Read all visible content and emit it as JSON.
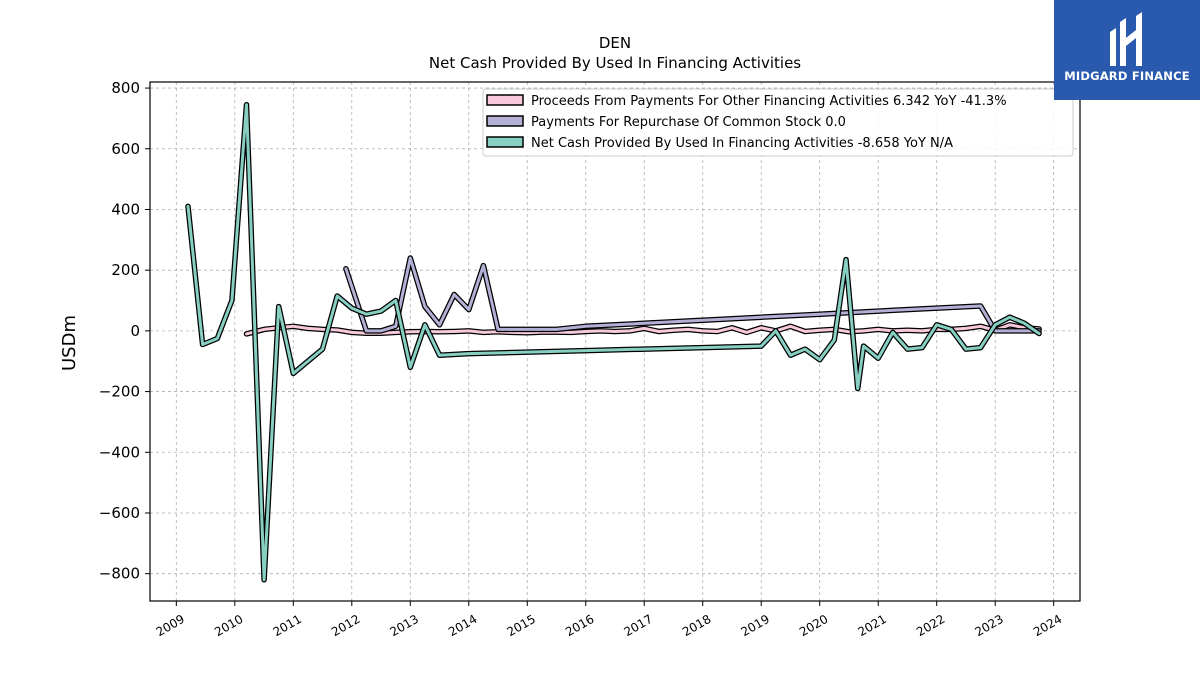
{
  "brand": {
    "name": "MIDGARD FINANCE",
    "icon": "midgard-logo-icon",
    "color": "#2a5aad"
  },
  "chart_data": {
    "type": "line",
    "title": "DEN",
    "subtitle": "Net Cash Provided By Used In Financing Activities",
    "ylabel": "USDm",
    "xlabel": "",
    "ylim": [
      -890,
      820
    ],
    "xlim": [
      2008.55,
      2024.45
    ],
    "x_ticks": [
      "2009",
      "2010",
      "2011",
      "2012",
      "2013",
      "2014",
      "2015",
      "2016",
      "2017",
      "2018",
      "2019",
      "2020",
      "2021",
      "2022",
      "2023",
      "2024"
    ],
    "y_ticks": [
      "800",
      "600",
      "400",
      "200",
      "0",
      "−200",
      "−400",
      "−600",
      "−800"
    ],
    "grid": true,
    "legend_position": "top-right",
    "series": [
      {
        "name": "Proceeds From Payments For Other Financing Activities",
        "legend": "Proceeds From Payments For Other Financing Activities  6.342 YoY -41.3%",
        "color": "#f8c8dc",
        "points": [
          [
            2010.2,
            -10
          ],
          [
            2010.5,
            5
          ],
          [
            2010.75,
            10
          ],
          [
            2011.0,
            15
          ],
          [
            2011.25,
            8
          ],
          [
            2011.5,
            5
          ],
          [
            2011.75,
            3
          ],
          [
            2012.0,
            -5
          ],
          [
            2012.25,
            -8
          ],
          [
            2012.5,
            -8
          ],
          [
            2012.75,
            -5
          ],
          [
            2013.0,
            -3
          ],
          [
            2013.25,
            -2
          ],
          [
            2013.5,
            -3
          ],
          [
            2013.75,
            -2
          ],
          [
            2014.0,
            0
          ],
          [
            2014.25,
            -5
          ],
          [
            2014.5,
            -3
          ],
          [
            2014.75,
            -5
          ],
          [
            2015.0,
            -6
          ],
          [
            2015.25,
            -4
          ],
          [
            2015.5,
            -4
          ],
          [
            2015.75,
            -5
          ],
          [
            2016.0,
            -2
          ],
          [
            2016.25,
            0
          ],
          [
            2016.5,
            -2
          ],
          [
            2016.75,
            0
          ],
          [
            2017.0,
            8
          ],
          [
            2017.25,
            -2
          ],
          [
            2017.5,
            2
          ],
          [
            2017.75,
            5
          ],
          [
            2018.0,
            0
          ],
          [
            2018.25,
            -2
          ],
          [
            2018.5,
            10
          ],
          [
            2018.75,
            -5
          ],
          [
            2019.0,
            10
          ],
          [
            2019.25,
            0
          ],
          [
            2019.5,
            15
          ],
          [
            2019.75,
            -2
          ],
          [
            2020.0,
            2
          ],
          [
            2020.25,
            5
          ],
          [
            2020.5,
            -3
          ],
          [
            2020.75,
            0
          ],
          [
            2021.0,
            5
          ],
          [
            2021.25,
            0
          ],
          [
            2021.5,
            2
          ],
          [
            2021.75,
            0
          ],
          [
            2022.0,
            5
          ],
          [
            2022.25,
            5
          ],
          [
            2022.5,
            8
          ],
          [
            2022.75,
            15
          ],
          [
            2023.0,
            2
          ],
          [
            2023.25,
            20
          ],
          [
            2023.5,
            10
          ],
          [
            2023.75,
            6.342
          ]
        ]
      },
      {
        "name": "Payments For Repurchase Of Common Stock",
        "legend": "Payments For Repurchase Of Common Stock  0.0",
        "color": "#b3b0d6",
        "points": [
          [
            2011.9,
            205
          ],
          [
            2012.25,
            0
          ],
          [
            2012.5,
            0
          ],
          [
            2012.75,
            15
          ],
          [
            2013.0,
            240
          ],
          [
            2013.25,
            80
          ],
          [
            2013.5,
            20
          ],
          [
            2013.75,
            120
          ],
          [
            2014.0,
            70
          ],
          [
            2014.25,
            215
          ],
          [
            2014.5,
            5
          ],
          [
            2015.0,
            5
          ],
          [
            2015.5,
            5
          ],
          [
            2016.0,
            15
          ],
          [
            2017.0,
            25
          ],
          [
            2018.0,
            35
          ],
          [
            2019.0,
            45
          ],
          [
            2020.0,
            55
          ],
          [
            2021.0,
            65
          ],
          [
            2022.0,
            75
          ],
          [
            2022.75,
            82
          ],
          [
            2023.0,
            0
          ],
          [
            2023.25,
            0
          ],
          [
            2023.5,
            0
          ],
          [
            2023.75,
            0
          ]
        ]
      },
      {
        "name": "Net Cash Provided By Used In Financing Activities",
        "legend": "Net Cash Provided By Used In Financing Activities  -8.658 YoY N/A",
        "color": "#86cfc2",
        "points": [
          [
            2009.2,
            410
          ],
          [
            2009.45,
            -45
          ],
          [
            2009.7,
            -25
          ],
          [
            2009.95,
            100
          ],
          [
            2010.2,
            745
          ],
          [
            2010.5,
            -820
          ],
          [
            2010.75,
            80
          ],
          [
            2011.0,
            -140
          ],
          [
            2011.5,
            -60
          ],
          [
            2011.75,
            115
          ],
          [
            2012.0,
            75
          ],
          [
            2012.25,
            55
          ],
          [
            2012.5,
            65
          ],
          [
            2012.75,
            100
          ],
          [
            2013.0,
            -120
          ],
          [
            2013.25,
            20
          ],
          [
            2013.5,
            -80
          ],
          [
            2014.0,
            -75
          ],
          [
            2015.0,
            -70
          ],
          [
            2016.0,
            -65
          ],
          [
            2017.0,
            -60
          ],
          [
            2018.0,
            -55
          ],
          [
            2019.0,
            -50
          ],
          [
            2019.25,
            0
          ],
          [
            2019.5,
            -80
          ],
          [
            2019.75,
            -60
          ],
          [
            2020.0,
            -95
          ],
          [
            2020.25,
            -30
          ],
          [
            2020.45,
            235
          ],
          [
            2020.65,
            -190
          ],
          [
            2020.75,
            -50
          ],
          [
            2021.0,
            -90
          ],
          [
            2021.25,
            -5
          ],
          [
            2021.5,
            -60
          ],
          [
            2021.75,
            -55
          ],
          [
            2022.0,
            20
          ],
          [
            2022.25,
            5
          ],
          [
            2022.5,
            -60
          ],
          [
            2022.75,
            -55
          ],
          [
            2023.0,
            20
          ],
          [
            2023.25,
            45
          ],
          [
            2023.5,
            25
          ],
          [
            2023.75,
            -8.658
          ]
        ]
      }
    ]
  }
}
